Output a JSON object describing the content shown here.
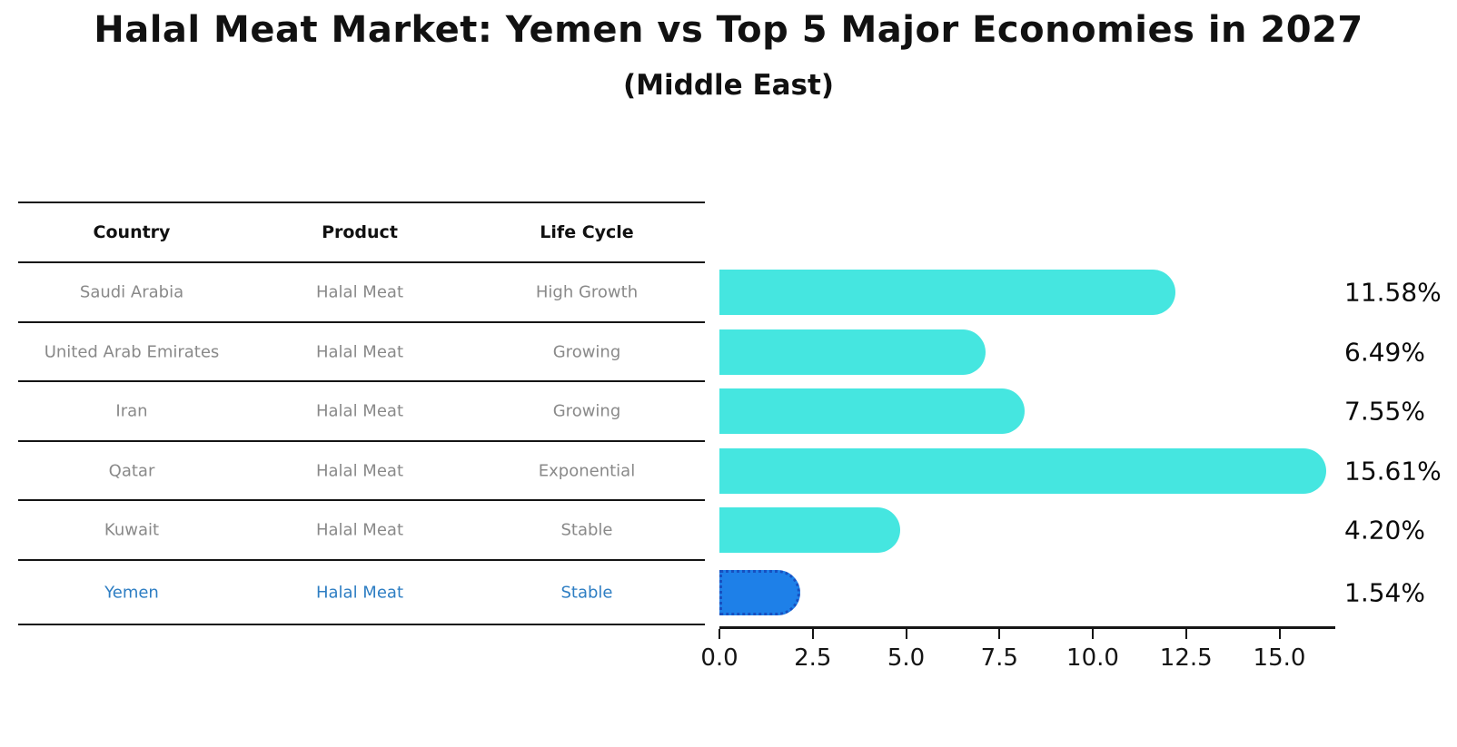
{
  "title": "Halal Meat Market: Yemen vs Top 5 Major Economies in 2027",
  "subtitle": "(Middle East)",
  "table": {
    "headers": [
      "Country",
      "Product",
      "Life Cycle"
    ]
  },
  "rows": [
    {
      "country": "Saudi Arabia",
      "product": "Halal Meat",
      "life_cycle": "High Growth",
      "value": 11.58,
      "value_label": "11.58%",
      "highlight": false
    },
    {
      "country": "United Arab Emirates",
      "product": "Halal Meat",
      "life_cycle": "Growing",
      "value": 6.49,
      "value_label": "6.49%",
      "highlight": false
    },
    {
      "country": "Iran",
      "product": "Halal Meat",
      "life_cycle": "Growing",
      "value": 7.55,
      "value_label": "7.55%",
      "highlight": false
    },
    {
      "country": "Qatar",
      "product": "Halal Meat",
      "life_cycle": "Exponential",
      "value": 15.61,
      "value_label": "15.61%",
      "highlight": false
    },
    {
      "country": "Kuwait",
      "product": "Halal Meat",
      "life_cycle": "Stable",
      "value": 4.2,
      "value_label": "4.20%",
      "highlight": false
    },
    {
      "country": "Yemen",
      "product": "Halal Meat",
      "life_cycle": "Stable",
      "value": 1.54,
      "value_label": "1.54%",
      "highlight": true
    }
  ],
  "chart_data": {
    "type": "bar",
    "orientation": "horizontal",
    "title": "Halal Meat Market: Yemen vs Top 5 Major Economies in 2027",
    "subtitle": "(Middle East)",
    "categories": [
      "Saudi Arabia",
      "United Arab Emirates",
      "Iran",
      "Qatar",
      "Kuwait",
      "Yemen"
    ],
    "values": [
      11.58,
      6.49,
      7.55,
      15.61,
      4.2,
      1.54
    ],
    "value_labels": [
      "11.58%",
      "6.49%",
      "7.55%",
      "15.61%",
      "4.20%",
      "1.54%"
    ],
    "xlabel": "",
    "ylabel": "",
    "xlim": [
      0,
      16.5
    ],
    "xticks": [
      0,
      2.5,
      5,
      7.5,
      10,
      12.5,
      15
    ],
    "xtick_labels": [
      "0.0",
      "2.5",
      "5.0",
      "7.5",
      "10.0",
      "12.5",
      "15.0"
    ],
    "grid": false,
    "legend": false,
    "highlight_category": "Yemen"
  },
  "colors": {
    "bar_default": "#45e6e0",
    "bar_highlight": "#1e80e8",
    "bar_highlight_border": "#1850c0",
    "row_text": "#898989",
    "row_text_highlight": "#2e7ec3",
    "header_text": "#111111",
    "line": "#151515",
    "value_text": "#0b0b0b"
  }
}
